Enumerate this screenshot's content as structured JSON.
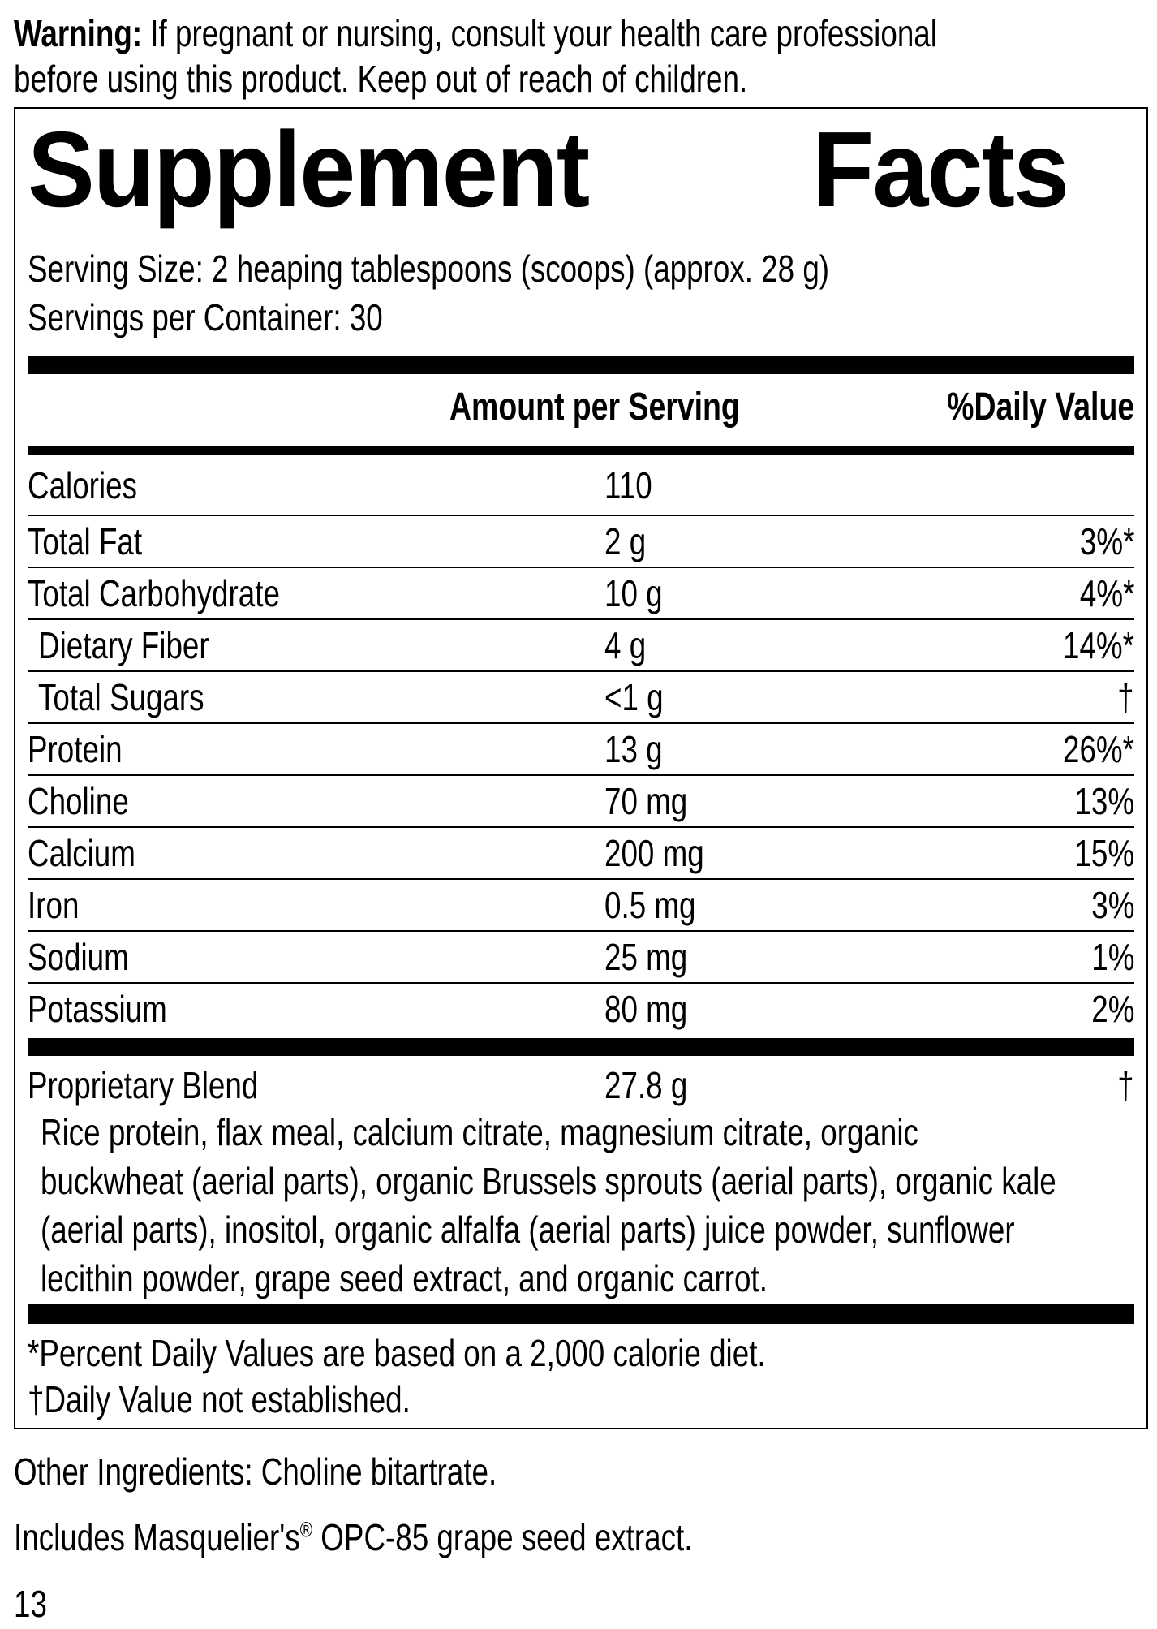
{
  "warning": {
    "label": "Warning:",
    "line1": "If pregnant or nursing, consult your health care professional",
    "line2": "before using this product. Keep out of reach of children."
  },
  "facts": {
    "title_word1": "Supplement",
    "title_word2": "Facts",
    "serving_size": "Serving Size: 2 heaping tablespoons (scoops) (approx. 28 g)",
    "servings_per_container": "Servings per Container: 30",
    "header_amount": "Amount per Serving",
    "header_dv": "%Daily Value",
    "rows": [
      {
        "name": "Calories",
        "amount": "110",
        "dv": "",
        "indent": false
      },
      {
        "name": "Total Fat",
        "amount": "2 g",
        "dv": "3%*",
        "indent": false
      },
      {
        "name": "Total Carbohydrate",
        "amount": "10 g",
        "dv": "4%*",
        "indent": false
      },
      {
        "name": "Dietary Fiber",
        "amount": "4 g",
        "dv": "14%*",
        "indent": true
      },
      {
        "name": "Total Sugars",
        "amount": "<1 g",
        "dv": "†",
        "indent": true
      },
      {
        "name": "Protein",
        "amount": "13 g",
        "dv": "26%*",
        "indent": false
      },
      {
        "name": "Choline",
        "amount": "70 mg",
        "dv": "13%",
        "indent": false
      },
      {
        "name": "Calcium",
        "amount": "200 mg",
        "dv": "15%",
        "indent": false
      },
      {
        "name": "Iron",
        "amount": "0.5 mg",
        "dv": "3%",
        "indent": false
      },
      {
        "name": "Sodium",
        "amount": "25 mg",
        "dv": "1%",
        "indent": false
      },
      {
        "name": "Potassium",
        "amount": "80 mg",
        "dv": "2%",
        "indent": false
      }
    ],
    "blend": {
      "name": "Proprietary Blend",
      "amount": "27.8 g",
      "dv": "†",
      "ingredients_lines": [
        "Rice protein, flax meal, calcium citrate, magnesium citrate, organic",
        "buckwheat (aerial parts), organic Brussels sprouts (aerial parts), organic kale",
        "(aerial parts), inositol, organic alfalfa (aerial parts) juice powder, sunflower",
        "lecithin powder, grape seed extract, and organic carrot."
      ]
    },
    "footnote1": "*Percent Daily Values are based on a 2,000 calorie diet.",
    "footnote2": "†Daily Value not established."
  },
  "other_ingredients": "Other Ingredients: Choline bitartrate.",
  "includes": {
    "before": "Includes Masquelier's",
    "reg": "®",
    "after": " OPC-85 grape seed extract."
  },
  "page_number": "13"
}
